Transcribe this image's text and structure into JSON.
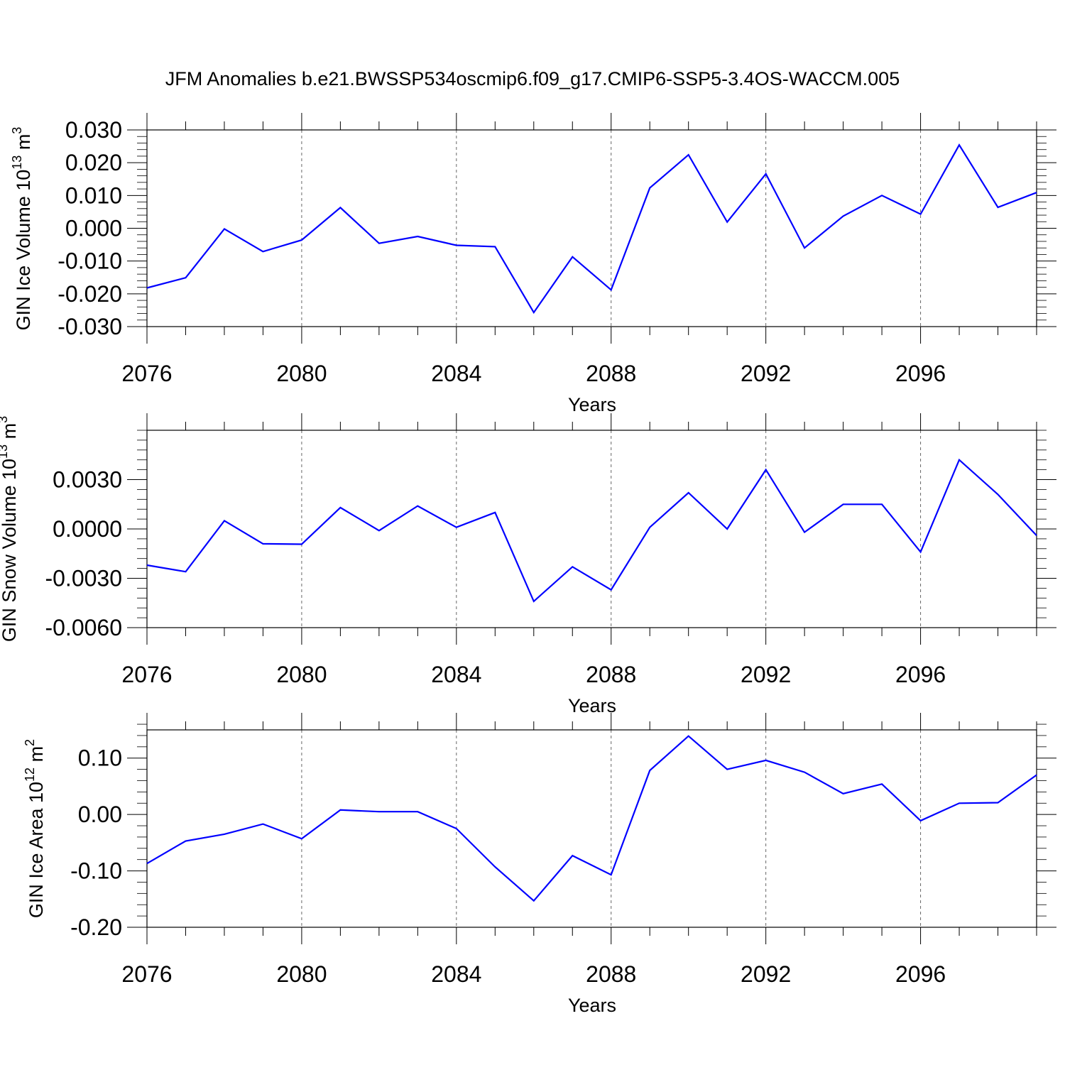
{
  "title": "JFM Anomalies b.e21.BWSSP534oscmip6.f09_g17.CMIP6-SSP5-3.4OS-WACCM.005",
  "chart_data": [
    {
      "type": "line",
      "ylabel": "GIN Ice Volume 10",
      "ylabel_exp": "13",
      "ylabel_unit": " m",
      "ylabel_unit_exp": "3",
      "xlabel": "Years",
      "xlim": [
        2076,
        2099
      ],
      "ylim": [
        -0.03,
        0.03
      ],
      "x_ticks": [
        2076,
        2080,
        2084,
        2088,
        2092,
        2096
      ],
      "x_tick_labels": [
        "2076",
        "2080",
        "2084",
        "2088",
        "2092",
        "2096"
      ],
      "y_ticks": [
        -0.03,
        -0.02,
        -0.01,
        0.0,
        0.01,
        0.02,
        0.03
      ],
      "y_tick_labels": [
        "-0.030",
        "-0.020",
        "-0.010",
        "0.000",
        "0.010",
        "0.020",
        "0.030"
      ],
      "grid": "vertical dashed at major x ticks",
      "line_color": "#0000ff",
      "x": [
        2076,
        2077,
        2078,
        2079,
        2080,
        2081,
        2082,
        2083,
        2084,
        2085,
        2086,
        2087,
        2088,
        2089,
        2090,
        2091,
        2092,
        2093,
        2094,
        2095,
        2096,
        2097,
        2098,
        2099
      ],
      "values": [
        -0.0182,
        -0.0151,
        -0.0002,
        -0.0071,
        -0.0036,
        0.0063,
        -0.0046,
        -0.0025,
        -0.0052,
        -0.0056,
        -0.0257,
        -0.0087,
        -0.0188,
        0.0123,
        0.0224,
        0.0019,
        0.0166,
        -0.006,
        0.0037,
        0.01,
        0.0043,
        0.0254,
        0.0064,
        0.0109
      ]
    },
    {
      "type": "line",
      "ylabel": "GIN Snow Volume 10",
      "ylabel_exp": "13",
      "ylabel_unit": " m",
      "ylabel_unit_exp": "3",
      "xlabel": "Years",
      "xlim": [
        2076,
        2099
      ],
      "ylim": [
        -0.006,
        0.006
      ],
      "x_ticks": [
        2076,
        2080,
        2084,
        2088,
        2092,
        2096
      ],
      "x_tick_labels": [
        "2076",
        "2080",
        "2084",
        "2088",
        "2092",
        "2096"
      ],
      "y_ticks": [
        -0.006,
        -0.003,
        0.0,
        0.003
      ],
      "y_tick_labels": [
        "-0.0060",
        "-0.0030",
        "0.0000",
        "0.0030"
      ],
      "grid": "vertical dashed at major x ticks",
      "line_color": "#0000ff",
      "x": [
        2076,
        2077,
        2078,
        2079,
        2080,
        2081,
        2082,
        2083,
        2084,
        2085,
        2086,
        2087,
        2088,
        2089,
        2090,
        2091,
        2092,
        2093,
        2094,
        2095,
        2096,
        2097,
        2098,
        2099
      ],
      "values": [
        -0.0022,
        -0.0026,
        0.0005,
        -0.0009,
        -0.00093,
        0.0013,
        -0.0001,
        0.0014,
        0.0001,
        0.001,
        -0.0044,
        -0.0023,
        -0.0037,
        0.0001,
        0.0022,
        0.0,
        0.0036,
        -0.0002,
        0.0015,
        0.0015,
        -0.0014,
        0.0042,
        0.0021,
        -0.0004
      ]
    },
    {
      "type": "line",
      "ylabel": "GIN Ice Area 10",
      "ylabel_exp": "12",
      "ylabel_unit": " m",
      "ylabel_unit_exp": "2",
      "xlabel": "Years",
      "xlim": [
        2076,
        2099
      ],
      "ylim": [
        -0.2,
        0.15
      ],
      "x_ticks": [
        2076,
        2080,
        2084,
        2088,
        2092,
        2096
      ],
      "x_tick_labels": [
        "2076",
        "2080",
        "2084",
        "2088",
        "2092",
        "2096"
      ],
      "y_ticks": [
        -0.2,
        -0.1,
        0.0,
        0.1
      ],
      "y_tick_labels": [
        "-0.20",
        "-0.10",
        "0.00",
        "0.10"
      ],
      "grid": "vertical dashed at major x ticks",
      "line_color": "#0000ff",
      "x": [
        2076,
        2077,
        2078,
        2079,
        2080,
        2081,
        2082,
        2083,
        2084,
        2085,
        2086,
        2087,
        2088,
        2089,
        2090,
        2091,
        2092,
        2093,
        2094,
        2095,
        2096,
        2097,
        2098,
        2099
      ],
      "values": [
        -0.087,
        -0.047,
        -0.035,
        -0.017,
        -0.043,
        0.008,
        0.005,
        0.005,
        -0.025,
        -0.093,
        -0.153,
        -0.073,
        -0.107,
        0.078,
        0.139,
        0.08,
        0.096,
        0.075,
        0.037,
        0.054,
        -0.011,
        0.02,
        0.021,
        0.07
      ]
    }
  ]
}
